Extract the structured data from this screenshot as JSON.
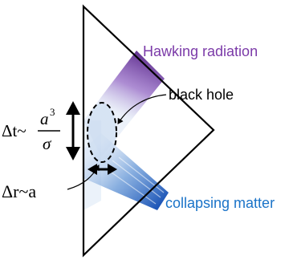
{
  "labels": {
    "hawking": "Hawking radiation",
    "black_hole": "black hole",
    "collapsing": "collapsing matter",
    "delta_t_lhs": "Δt~",
    "delta_t_num_base": "a",
    "delta_t_num_exp": "3",
    "delta_t_den": "σ",
    "delta_r": "Δr~a"
  },
  "colors": {
    "hawking": "#7b3aa8",
    "collapsing": "#1a73c8",
    "outline": "#000000"
  }
}
